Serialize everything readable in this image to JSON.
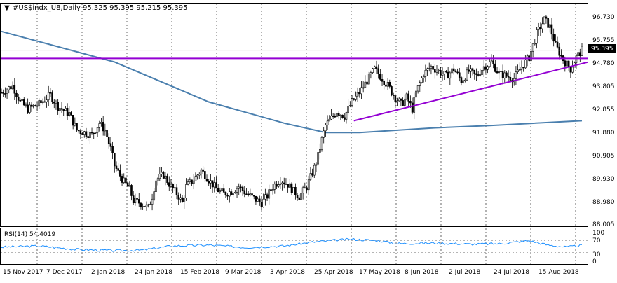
{
  "header": {
    "symbol": "#US$indx_U8,Daily",
    "ohlc": "95.325 95.395 95.215 95.395"
  },
  "price_axis": {
    "labels": [
      "96.730",
      "95.755",
      "94.780",
      "93.805",
      "92.855",
      "91.880",
      "90.905",
      "89.930",
      "88.980",
      "88.005"
    ],
    "current_price": "95.395",
    "current_price_bg": "#000000"
  },
  "rsi_panel": {
    "label": "RSI(14) 54.4019",
    "axis_labels": [
      "100",
      "70",
      "30",
      "0"
    ],
    "line_color": "#1e90ff"
  },
  "time_axis": {
    "labels": [
      "15 Nov 2017",
      "7 Dec 2017",
      "2 Jan 2018",
      "24 Jan 2018",
      "15 Feb 2018",
      "9 Mar 2018",
      "3 Apr 2018",
      "25 Apr 2018",
      "17 May 2018",
      "8 Jun 2018",
      "2 Jul 2018",
      "24 Jul 2018",
      "15 Aug 2018"
    ]
  },
  "colors": {
    "moving_average": "#4a7fae",
    "trendlines": "#9400d3",
    "candles": "#000000",
    "background": "#ffffff"
  },
  "chart_data": {
    "type": "candlestick",
    "price_close_path": [
      [
        0,
        93.6
      ],
      [
        6,
        93.9
      ],
      [
        10,
        93.2
      ],
      [
        14,
        92.9
      ],
      [
        20,
        93.1
      ],
      [
        26,
        93.5
      ],
      [
        30,
        93.0
      ],
      [
        36,
        92.7
      ],
      [
        40,
        92.0
      ],
      [
        44,
        91.9
      ],
      [
        48,
        91.8
      ],
      [
        52,
        92.3
      ],
      [
        55,
        92.0
      ],
      [
        58,
        91.2
      ],
      [
        60,
        90.5
      ],
      [
        62,
        90.2
      ],
      [
        65,
        89.8
      ],
      [
        68,
        89.5
      ],
      [
        70,
        89.0
      ],
      [
        74,
        88.9
      ],
      [
        78,
        88.7
      ],
      [
        80,
        89.2
      ],
      [
        82,
        89.9
      ],
      [
        86,
        90.1
      ],
      [
        90,
        89.6
      ],
      [
        94,
        89.2
      ],
      [
        96,
        88.9
      ],
      [
        98,
        89.6
      ],
      [
        102,
        89.9
      ],
      [
        106,
        90.3
      ],
      [
        110,
        89.9
      ],
      [
        114,
        89.5
      ],
      [
        118,
        89.3
      ],
      [
        122,
        89.4
      ],
      [
        126,
        89.6
      ],
      [
        130,
        89.3
      ],
      [
        134,
        89.1
      ],
      [
        138,
        88.9
      ],
      [
        141,
        89.2
      ],
      [
        144,
        89.6
      ],
      [
        148,
        89.9
      ],
      [
        152,
        89.7
      ],
      [
        155,
        89.4
      ],
      [
        158,
        89.2
      ],
      [
        162,
        89.6
      ],
      [
        166,
        90.4
      ],
      [
        168,
        90.9
      ],
      [
        170,
        91.6
      ],
      [
        172,
        92.2
      ],
      [
        175,
        92.5
      ],
      [
        178,
        92.8
      ],
      [
        182,
        92.6
      ],
      [
        186,
        93.2
      ],
      [
        190,
        93.6
      ],
      [
        194,
        94.1
      ],
      [
        198,
        94.6
      ],
      [
        202,
        94.2
      ],
      [
        205,
        93.9
      ],
      [
        208,
        93.5
      ],
      [
        212,
        93.1
      ],
      [
        215,
        93.4
      ],
      [
        218,
        92.9
      ],
      [
        220,
        93.6
      ],
      [
        224,
        94.4
      ],
      [
        228,
        94.7
      ],
      [
        232,
        94.5
      ],
      [
        236,
        94.3
      ],
      [
        240,
        94.6
      ],
      [
        244,
        94.1
      ],
      [
        248,
        94.5
      ],
      [
        252,
        94.3
      ],
      [
        256,
        94.7
      ],
      [
        260,
        94.9
      ],
      [
        264,
        94.4
      ],
      [
        268,
        94.3
      ],
      [
        272,
        94.2
      ],
      [
        276,
        94.7
      ],
      [
        280,
        95.1
      ],
      [
        284,
        96.1
      ],
      [
        288,
        96.7
      ],
      [
        291,
        96.4
      ],
      [
        294,
        95.6
      ],
      [
        298,
        95.0
      ],
      [
        302,
        94.6
      ],
      [
        305,
        95.1
      ],
      [
        308,
        95.4
      ]
    ],
    "moving_average": [
      [
        0,
        96.2
      ],
      [
        60,
        94.9
      ],
      [
        110,
        93.2
      ],
      [
        150,
        92.3
      ],
      [
        172,
        91.9
      ],
      [
        190,
        91.9
      ],
      [
        230,
        92.1
      ],
      [
        260,
        92.2
      ],
      [
        308,
        92.4
      ]
    ],
    "horizontal_line": 95.05,
    "trendlines": [
      {
        "from": [
          187,
          92.4
        ],
        "to": [
          308,
          94.8
        ]
      }
    ],
    "rsi": {
      "levels": [
        70,
        30
      ],
      "values": [
        [
          0,
          48
        ],
        [
          20,
          52
        ],
        [
          40,
          40
        ],
        [
          60,
          36
        ],
        [
          75,
          38
        ],
        [
          90,
          52
        ],
        [
          110,
          55
        ],
        [
          130,
          47
        ],
        [
          150,
          52
        ],
        [
          165,
          65
        ],
        [
          185,
          75
        ],
        [
          200,
          70
        ],
        [
          210,
          60
        ],
        [
          230,
          62
        ],
        [
          250,
          58
        ],
        [
          265,
          60
        ],
        [
          280,
          70
        ],
        [
          290,
          55
        ],
        [
          300,
          48
        ],
        [
          308,
          54.4
        ]
      ]
    },
    "ylim": [
      88.005,
      96.73
    ]
  }
}
